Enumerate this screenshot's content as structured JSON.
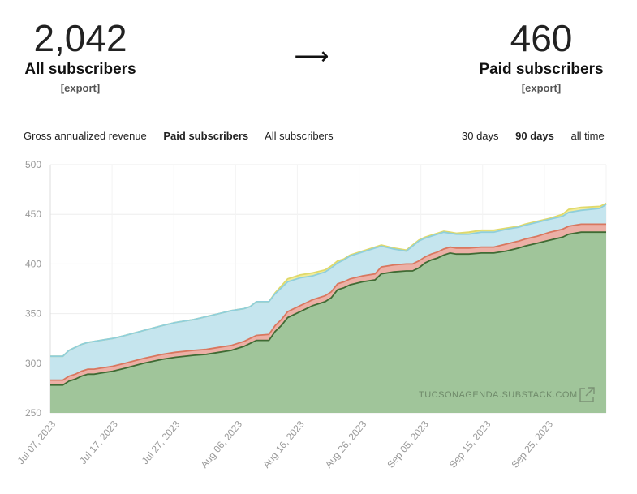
{
  "summary": {
    "left": {
      "number": "2,042",
      "label": "All subscribers",
      "export": "[export]"
    },
    "arrow": "⟶",
    "right": {
      "number": "460",
      "label": "Paid subscribers",
      "export": "[export]"
    }
  },
  "metric_tabs": [
    "Gross annualized revenue",
    "Paid subscribers",
    "All subscribers"
  ],
  "metric_active": 1,
  "range_tabs": [
    "30 days",
    "90 days",
    "all time"
  ],
  "range_active": 1,
  "watermark": "TUCSONAGENDA.SUBSTACK.COM",
  "colors": {
    "green": "#a0c59a",
    "green_line": "#3f6b34",
    "red": "#ecb0a6",
    "red_line": "#d9775f",
    "blue": "#c5e5ee",
    "blue_line": "#8fcfdc",
    "yellow": "#f1ec9a",
    "yellow_line": "#e0d96a"
  },
  "chart_data": {
    "type": "area",
    "stacked": true,
    "ylim": [
      250,
      500
    ],
    "yticks": [
      250,
      300,
      350,
      400,
      450,
      500
    ],
    "x_tick_labels": [
      "Jul 07, 2023",
      "Jul 17, 2023",
      "Jul 27, 2023",
      "Aug 06, 2023",
      "Aug 16, 2023",
      "Aug 26, 2023",
      "Sep 05, 2023",
      "Sep 15, 2023",
      "Sep 25, 2023"
    ],
    "x_days": 89,
    "series": [
      {
        "values": [
          [
            0,
            278
          ],
          [
            2,
            278
          ],
          [
            3,
            282
          ],
          [
            4,
            284
          ],
          [
            5,
            287
          ],
          [
            6,
            289
          ],
          [
            7,
            289
          ],
          [
            8,
            290
          ],
          [
            10,
            292
          ],
          [
            12,
            295
          ],
          [
            15,
            300
          ],
          [
            18,
            304
          ],
          [
            20,
            306
          ],
          [
            23,
            308
          ],
          [
            25,
            309
          ],
          [
            27,
            311
          ],
          [
            29,
            313
          ],
          [
            30,
            315
          ],
          [
            31,
            317
          ],
          [
            32,
            320
          ],
          [
            33,
            323
          ],
          [
            35,
            323
          ],
          [
            36,
            332
          ],
          [
            37,
            338
          ],
          [
            38,
            346
          ],
          [
            40,
            352
          ],
          [
            42,
            358
          ],
          [
            44,
            362
          ],
          [
            45,
            366
          ],
          [
            46,
            374
          ],
          [
            47,
            376
          ],
          [
            48,
            379
          ],
          [
            50,
            382
          ],
          [
            52,
            384
          ],
          [
            53,
            390
          ],
          [
            55,
            392
          ],
          [
            57,
            393
          ],
          [
            58,
            393
          ],
          [
            59,
            396
          ],
          [
            60,
            401
          ],
          [
            61,
            404
          ],
          [
            62,
            406
          ],
          [
            63,
            409
          ],
          [
            64,
            411
          ],
          [
            65,
            410
          ],
          [
            67,
            410
          ],
          [
            69,
            411
          ],
          [
            71,
            411
          ],
          [
            73,
            413
          ],
          [
            75,
            416
          ],
          [
            76,
            418
          ],
          [
            78,
            421
          ],
          [
            80,
            424
          ],
          [
            82,
            427
          ],
          [
            83,
            430
          ],
          [
            85,
            432
          ],
          [
            88,
            432
          ],
          [
            89,
            432
          ]
        ]
      },
      {
        "values": [
          [
            0,
            283
          ],
          [
            2,
            283
          ],
          [
            3,
            287
          ],
          [
            4,
            289
          ],
          [
            5,
            292
          ],
          [
            6,
            294
          ],
          [
            7,
            294
          ],
          [
            8,
            295
          ],
          [
            10,
            297
          ],
          [
            12,
            300
          ],
          [
            15,
            305
          ],
          [
            18,
            309
          ],
          [
            20,
            311
          ],
          [
            23,
            313
          ],
          [
            25,
            314
          ],
          [
            27,
            316
          ],
          [
            29,
            318
          ],
          [
            30,
            320
          ],
          [
            31,
            322
          ],
          [
            32,
            325
          ],
          [
            33,
            328
          ],
          [
            35,
            329
          ],
          [
            36,
            338
          ],
          [
            37,
            344
          ],
          [
            38,
            352
          ],
          [
            40,
            358
          ],
          [
            42,
            364
          ],
          [
            44,
            368
          ],
          [
            45,
            372
          ],
          [
            46,
            380
          ],
          [
            47,
            382
          ],
          [
            48,
            385
          ],
          [
            50,
            388
          ],
          [
            52,
            390
          ],
          [
            53,
            397
          ],
          [
            55,
            399
          ],
          [
            57,
            400
          ],
          [
            58,
            400
          ],
          [
            59,
            403
          ],
          [
            60,
            407
          ],
          [
            61,
            410
          ],
          [
            62,
            412
          ],
          [
            63,
            415
          ],
          [
            64,
            417
          ],
          [
            65,
            416
          ],
          [
            67,
            416
          ],
          [
            69,
            417
          ],
          [
            71,
            417
          ],
          [
            73,
            420
          ],
          [
            75,
            423
          ],
          [
            76,
            425
          ],
          [
            78,
            428
          ],
          [
            80,
            432
          ],
          [
            82,
            435
          ],
          [
            83,
            438
          ],
          [
            85,
            440
          ],
          [
            88,
            440
          ],
          [
            89,
            440
          ]
        ]
      },
      {
        "values": [
          [
            0,
            307
          ],
          [
            2,
            307
          ],
          [
            3,
            313
          ],
          [
            4,
            316
          ],
          [
            5,
            319
          ],
          [
            6,
            321
          ],
          [
            7,
            322
          ],
          [
            8,
            323
          ],
          [
            10,
            325
          ],
          [
            12,
            328
          ],
          [
            15,
            333
          ],
          [
            18,
            338
          ],
          [
            20,
            341
          ],
          [
            23,
            344
          ],
          [
            25,
            347
          ],
          [
            27,
            350
          ],
          [
            29,
            353
          ],
          [
            30,
            354
          ],
          [
            31,
            355
          ],
          [
            32,
            357
          ],
          [
            33,
            362
          ],
          [
            35,
            362
          ],
          [
            36,
            370
          ],
          [
            37,
            376
          ],
          [
            38,
            382
          ],
          [
            40,
            386
          ],
          [
            42,
            388
          ],
          [
            44,
            392
          ],
          [
            45,
            396
          ],
          [
            46,
            401
          ],
          [
            47,
            404
          ],
          [
            48,
            408
          ],
          [
            50,
            412
          ],
          [
            52,
            416
          ],
          [
            53,
            418
          ],
          [
            55,
            415
          ],
          [
            57,
            413
          ],
          [
            58,
            418
          ],
          [
            59,
            423
          ],
          [
            60,
            426
          ],
          [
            61,
            428
          ],
          [
            62,
            430
          ],
          [
            63,
            432
          ],
          [
            64,
            431
          ],
          [
            65,
            430
          ],
          [
            67,
            430
          ],
          [
            69,
            432
          ],
          [
            71,
            432
          ],
          [
            73,
            435
          ],
          [
            75,
            437
          ],
          [
            76,
            439
          ],
          [
            78,
            442
          ],
          [
            80,
            445
          ],
          [
            82,
            448
          ],
          [
            83,
            452
          ],
          [
            85,
            454
          ],
          [
            88,
            456
          ],
          [
            89,
            460
          ]
        ]
      },
      {
        "values": [
          [
            0,
            307
          ],
          [
            2,
            307
          ],
          [
            3,
            313
          ],
          [
            4,
            316
          ],
          [
            5,
            319
          ],
          [
            6,
            321
          ],
          [
            7,
            322
          ],
          [
            8,
            323
          ],
          [
            10,
            325
          ],
          [
            12,
            328
          ],
          [
            15,
            333
          ],
          [
            18,
            338
          ],
          [
            20,
            341
          ],
          [
            23,
            344
          ],
          [
            25,
            347
          ],
          [
            27,
            350
          ],
          [
            29,
            353
          ],
          [
            30,
            354
          ],
          [
            31,
            355
          ],
          [
            32,
            357
          ],
          [
            33,
            362
          ],
          [
            35,
            362
          ],
          [
            36,
            371
          ],
          [
            37,
            378
          ],
          [
            38,
            385
          ],
          [
            40,
            389
          ],
          [
            42,
            391
          ],
          [
            44,
            394
          ],
          [
            45,
            398
          ],
          [
            46,
            403
          ],
          [
            47,
            405
          ],
          [
            48,
            409
          ],
          [
            50,
            413
          ],
          [
            52,
            417
          ],
          [
            53,
            419
          ],
          [
            55,
            416
          ],
          [
            57,
            414
          ],
          [
            58,
            419
          ],
          [
            59,
            424
          ],
          [
            60,
            427
          ],
          [
            61,
            429
          ],
          [
            62,
            431
          ],
          [
            63,
            433
          ],
          [
            64,
            432
          ],
          [
            65,
            431
          ],
          [
            67,
            432
          ],
          [
            69,
            434
          ],
          [
            71,
            434
          ],
          [
            73,
            436
          ],
          [
            75,
            438
          ],
          [
            76,
            440
          ],
          [
            78,
            443
          ],
          [
            80,
            446
          ],
          [
            82,
            450
          ],
          [
            83,
            455
          ],
          [
            85,
            457
          ],
          [
            88,
            458
          ],
          [
            89,
            461
          ]
        ]
      }
    ]
  }
}
